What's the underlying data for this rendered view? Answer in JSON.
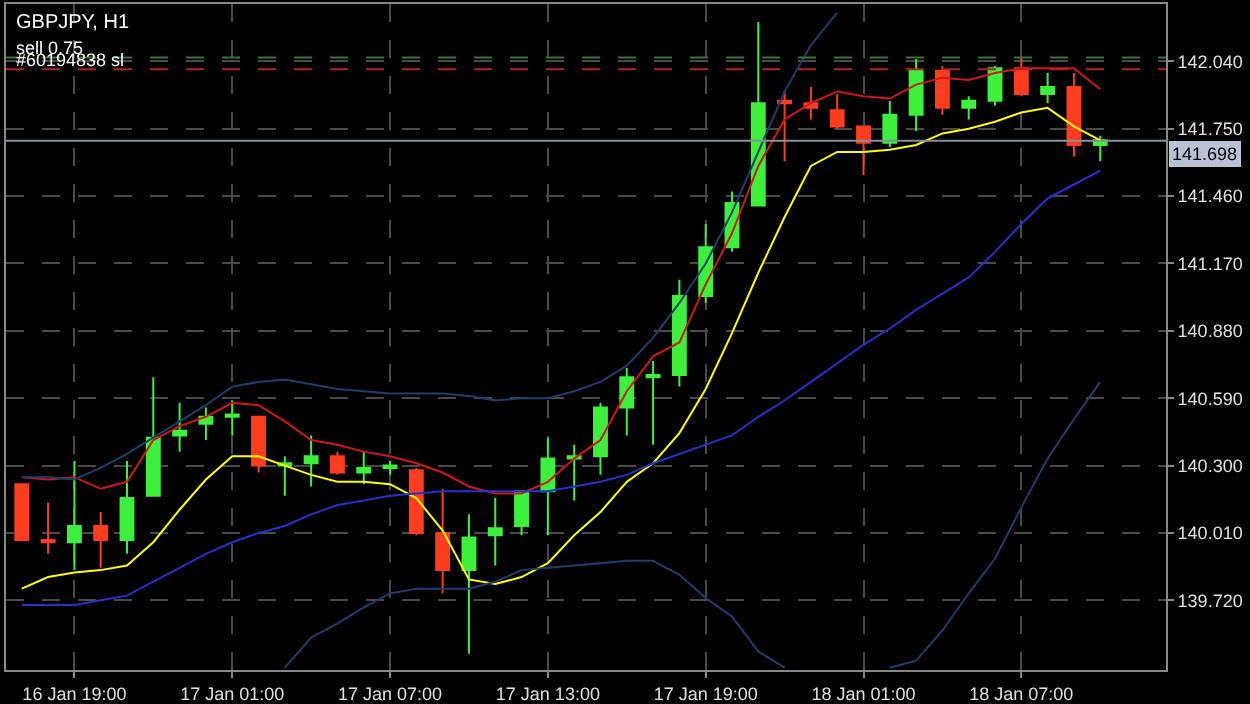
{
  "chart_data": {
    "type": "candlestick",
    "title": "GBPJPY, H1",
    "categories": [
      null,
      null,
      "16 Jan 19:00",
      null,
      null,
      null,
      null,
      null,
      "17 Jan 01:00",
      null,
      null,
      null,
      null,
      null,
      "17 Jan 07:00",
      null,
      null,
      null,
      null,
      null,
      "17 Jan 13:00",
      null,
      null,
      null,
      null,
      null,
      "17 Jan 19:00",
      null,
      null,
      null,
      null,
      null,
      "18 Jan 01:00",
      null,
      null,
      null,
      null,
      null,
      "18 Jan 07:00",
      null,
      null,
      null
    ],
    "ohlc": [
      [
        140.22,
        140.22,
        139.98,
        139.98
      ],
      [
        139.98,
        140.14,
        139.92,
        139.97
      ],
      [
        139.97,
        140.32,
        139.85,
        140.04
      ],
      [
        140.04,
        140.1,
        139.86,
        139.98
      ],
      [
        139.98,
        140.32,
        139.92,
        140.16
      ],
      [
        140.17,
        140.68,
        140.17,
        140.42
      ],
      [
        140.43,
        140.57,
        140.36,
        140.45
      ],
      [
        140.48,
        140.55,
        140.41,
        140.51
      ],
      [
        140.51,
        140.58,
        140.43,
        140.52
      ],
      [
        140.51,
        140.51,
        140.27,
        140.3
      ],
      [
        140.3,
        140.34,
        140.17,
        140.31
      ],
      [
        140.31,
        140.43,
        140.21,
        140.34
      ],
      [
        140.34,
        140.36,
        140.26,
        140.27
      ],
      [
        140.27,
        140.36,
        140.22,
        140.29
      ],
      [
        140.29,
        140.32,
        140.26,
        140.3
      ],
      [
        140.28,
        140.29,
        140.0,
        140.01
      ],
      [
        140.01,
        140.2,
        139.75,
        139.85
      ],
      [
        139.85,
        140.09,
        139.49,
        139.99
      ],
      [
        140.0,
        140.16,
        139.87,
        140.03
      ],
      [
        140.04,
        140.19,
        140.0,
        140.19
      ],
      [
        140.19,
        140.42,
        140.0,
        140.33
      ],
      [
        140.33,
        140.39,
        140.15,
        140.34
      ],
      [
        140.34,
        140.57,
        140.26,
        140.55
      ],
      [
        140.55,
        140.72,
        140.43,
        140.68
      ],
      [
        140.68,
        140.75,
        140.39,
        140.69
      ],
      [
        140.69,
        141.1,
        140.64,
        141.03
      ],
      [
        141.03,
        141.34,
        141.0,
        141.24
      ],
      [
        141.24,
        141.48,
        141.22,
        141.43
      ],
      [
        141.42,
        142.21,
        141.42,
        141.86
      ],
      [
        141.87,
        141.91,
        141.61,
        141.86
      ],
      [
        141.86,
        141.93,
        141.79,
        141.84
      ],
      [
        141.83,
        141.9,
        141.75,
        141.76
      ],
      [
        141.76,
        141.76,
        141.55,
        141.69
      ],
      [
        141.69,
        141.87,
        141.67,
        141.81
      ],
      [
        141.81,
        142.05,
        141.74,
        142.0
      ],
      [
        142.0,
        142.02,
        141.81,
        141.84
      ],
      [
        141.84,
        141.89,
        141.79,
        141.87
      ],
      [
        141.87,
        142.02,
        141.85,
        142.01
      ],
      [
        142.01,
        142.06,
        141.89,
        141.9
      ],
      [
        141.9,
        141.99,
        141.86,
        141.93
      ],
      [
        141.93,
        141.99,
        141.63,
        141.68
      ],
      [
        141.68,
        141.72,
        141.61,
        141.7
      ]
    ],
    "series": [
      {
        "type": "line",
        "color": "#ffff00",
        "values": [
          139.77,
          139.82,
          139.84,
          139.85,
          139.87,
          139.97,
          140.11,
          140.24,
          140.34,
          140.34,
          140.3,
          140.26,
          140.23,
          140.23,
          140.22,
          140.16,
          140.02,
          139.81,
          139.79,
          139.82,
          139.88,
          140.0,
          140.1,
          140.23,
          140.31,
          140.44,
          140.63,
          140.87,
          141.13,
          141.37,
          141.59,
          141.65,
          141.65,
          141.66,
          141.68,
          141.73,
          141.75,
          141.78,
          141.82,
          141.84,
          141.76,
          141.7
        ]
      },
      {
        "type": "line",
        "color": "#d01818",
        "values": [
          140.25,
          140.24,
          140.25,
          140.2,
          140.23,
          140.41,
          140.47,
          140.51,
          140.57,
          140.56,
          140.49,
          140.41,
          140.39,
          140.36,
          140.34,
          140.31,
          140.27,
          140.21,
          140.18,
          140.18,
          140.23,
          140.33,
          140.41,
          140.62,
          140.77,
          140.83,
          141.08,
          141.3,
          141.59,
          141.79,
          141.86,
          141.91,
          141.89,
          141.88,
          141.94,
          141.97,
          141.96,
          141.99,
          142.01,
          142.01,
          142.01,
          141.92
        ]
      },
      {
        "type": "line",
        "color": "#2233cc",
        "values": [
          139.7,
          139.7,
          139.7,
          139.72,
          139.74,
          139.8,
          139.86,
          139.92,
          139.97,
          140.01,
          140.04,
          140.09,
          140.13,
          140.15,
          140.17,
          140.18,
          140.19,
          140.19,
          140.19,
          140.19,
          140.19,
          140.21,
          140.23,
          140.26,
          140.31,
          140.35,
          140.39,
          140.43,
          140.51,
          140.58,
          140.66,
          140.74,
          140.82,
          140.89,
          140.97,
          141.04,
          141.11,
          141.22,
          141.34,
          141.45,
          141.51,
          141.57
        ]
      },
      {
        "type": "line",
        "color": "#1c3f6e",
        "values": [
          140.25,
          140.25,
          140.24,
          140.29,
          140.35,
          140.42,
          140.49,
          140.56,
          140.64,
          140.66,
          140.67,
          140.65,
          140.63,
          140.62,
          140.61,
          140.61,
          140.61,
          140.6,
          140.58,
          140.59,
          140.59,
          140.62,
          140.66,
          140.73,
          140.85,
          141.0,
          141.17,
          141.39,
          141.65,
          141.91,
          142.11,
          142.25,
          null,
          null,
          null,
          null,
          null,
          null,
          null,
          null,
          null,
          null
        ]
      },
      {
        "type": "line",
        "color": "#1c3f6e",
        "values": [
          null,
          null,
          null,
          null,
          null,
          null,
          null,
          null,
          null,
          null,
          139.43,
          139.56,
          139.62,
          139.69,
          139.75,
          139.77,
          139.77,
          139.77,
          139.8,
          139.85,
          139.86,
          139.87,
          139.88,
          139.89,
          139.89,
          139.83,
          139.73,
          139.65,
          139.5,
          139.43,
          null,
          null,
          null,
          139.43,
          139.46,
          139.59,
          139.75,
          139.9,
          140.12,
          140.33,
          140.5,
          140.66
        ]
      }
    ],
    "ylim": [
      139.42,
      142.287
    ],
    "yticks": [
      {
        "value": 139.72,
        "label": "139.720"
      },
      {
        "value": 140.01,
        "label": "140.010"
      },
      {
        "value": 140.3,
        "label": "140.300"
      },
      {
        "value": 140.59,
        "label": "140.590"
      },
      {
        "value": 140.88,
        "label": "140.880"
      },
      {
        "value": 141.17,
        "label": "141.170"
      },
      {
        "value": 141.46,
        "label": "141.460"
      },
      {
        "value": 141.75,
        "label": "141.750"
      },
      {
        "value": 142.04,
        "label": "142.040"
      }
    ],
    "ref_lines": [
      {
        "axis": "y",
        "value": 142.057,
        "label": "sell 0.75",
        "color": "#2e7d32",
        "line_style": "dashed"
      },
      {
        "axis": "y",
        "value": 142.006,
        "label": "#60194838 sl",
        "color": "#b22222",
        "line_style": "dashed"
      },
      {
        "axis": "y",
        "value": 141.698,
        "label": "141.698",
        "color": "#8a8f9c",
        "line_style": "solid"
      }
    ],
    "grid": true
  }
}
